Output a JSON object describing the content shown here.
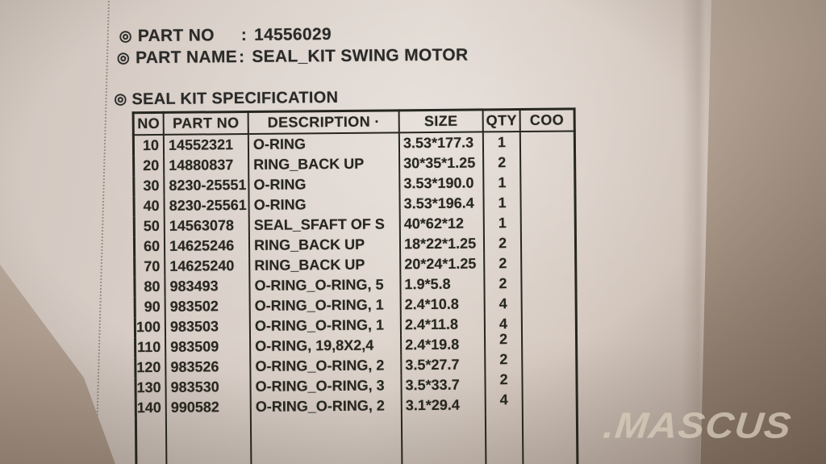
{
  "watermark": ".MASCUS",
  "label": {
    "bullet": "◎",
    "colon": ":",
    "part_no_label": "PART NO",
    "part_no_value": "14556029",
    "part_name_label": "PART NAME",
    "part_name_value": "SEAL_KIT SWING MOTOR",
    "section_title": "SEAL KIT SPECIFICATION"
  },
  "table": {
    "headers": [
      {
        "key": "no",
        "label": "NO"
      },
      {
        "key": "part_no",
        "label": "PART NO"
      },
      {
        "key": "description",
        "label": "DESCRIPTION ·"
      },
      {
        "key": "size",
        "label": "SIZE"
      },
      {
        "key": "qty",
        "label": "QTY"
      },
      {
        "key": "coo",
        "label": "COO"
      }
    ],
    "rows": [
      [
        "10",
        "14552321",
        "O-RING",
        "3.53*177.3",
        "1",
        ""
      ],
      [
        "20",
        "14880837",
        "RING_BACK UP",
        "30*35*1.25",
        "2",
        ""
      ],
      [
        "30",
        "8230-25551",
        "O-RING",
        "3.53*190.0",
        "1",
        ""
      ],
      [
        "40",
        "8230-25561",
        "O-RING",
        "3.53*196.4",
        "1",
        ""
      ],
      [
        "50",
        "14563078",
        "SEAL_SFAFT OF S",
        "40*62*12",
        "1",
        ""
      ],
      [
        "60",
        "14625246",
        "RING_BACK UP",
        "18*22*1.25",
        "2",
        ""
      ],
      [
        "70",
        "14625240",
        "RING_BACK UP",
        "20*24*1.25",
        "2",
        ""
      ],
      [
        "80",
        "983493",
        "O-RING_O-RING, 5",
        "1.9*5.8",
        "2",
        ""
      ],
      [
        "90",
        "983502",
        "O-RING_O-RING, 1",
        "2.4*10.8",
        "4",
        ""
      ],
      [
        "100",
        "983503",
        "O-RING_O-RING, 1",
        "2.4*11.8",
        "4",
        ""
      ],
      [
        "110",
        "983509",
        "O-RING, 19,8X2,4",
        "2.4*19.8",
        "2",
        ""
      ],
      [
        "120",
        "983526",
        "O-RING_O-RING, 2",
        "3.5*27.7",
        "2",
        ""
      ],
      [
        "130",
        "983530",
        "O-RING_O-RING, 3",
        "3.5*33.7",
        "2",
        ""
      ],
      [
        "140",
        "990582",
        "O-RING_O-RING, 2",
        "3.1*29.4",
        "4",
        ""
      ]
    ]
  },
  "colors": {
    "bag": "#d9cfc8",
    "backdrop": "#b6a597",
    "ink": "#2a2a28",
    "watermark_text": "#d6caba"
  }
}
